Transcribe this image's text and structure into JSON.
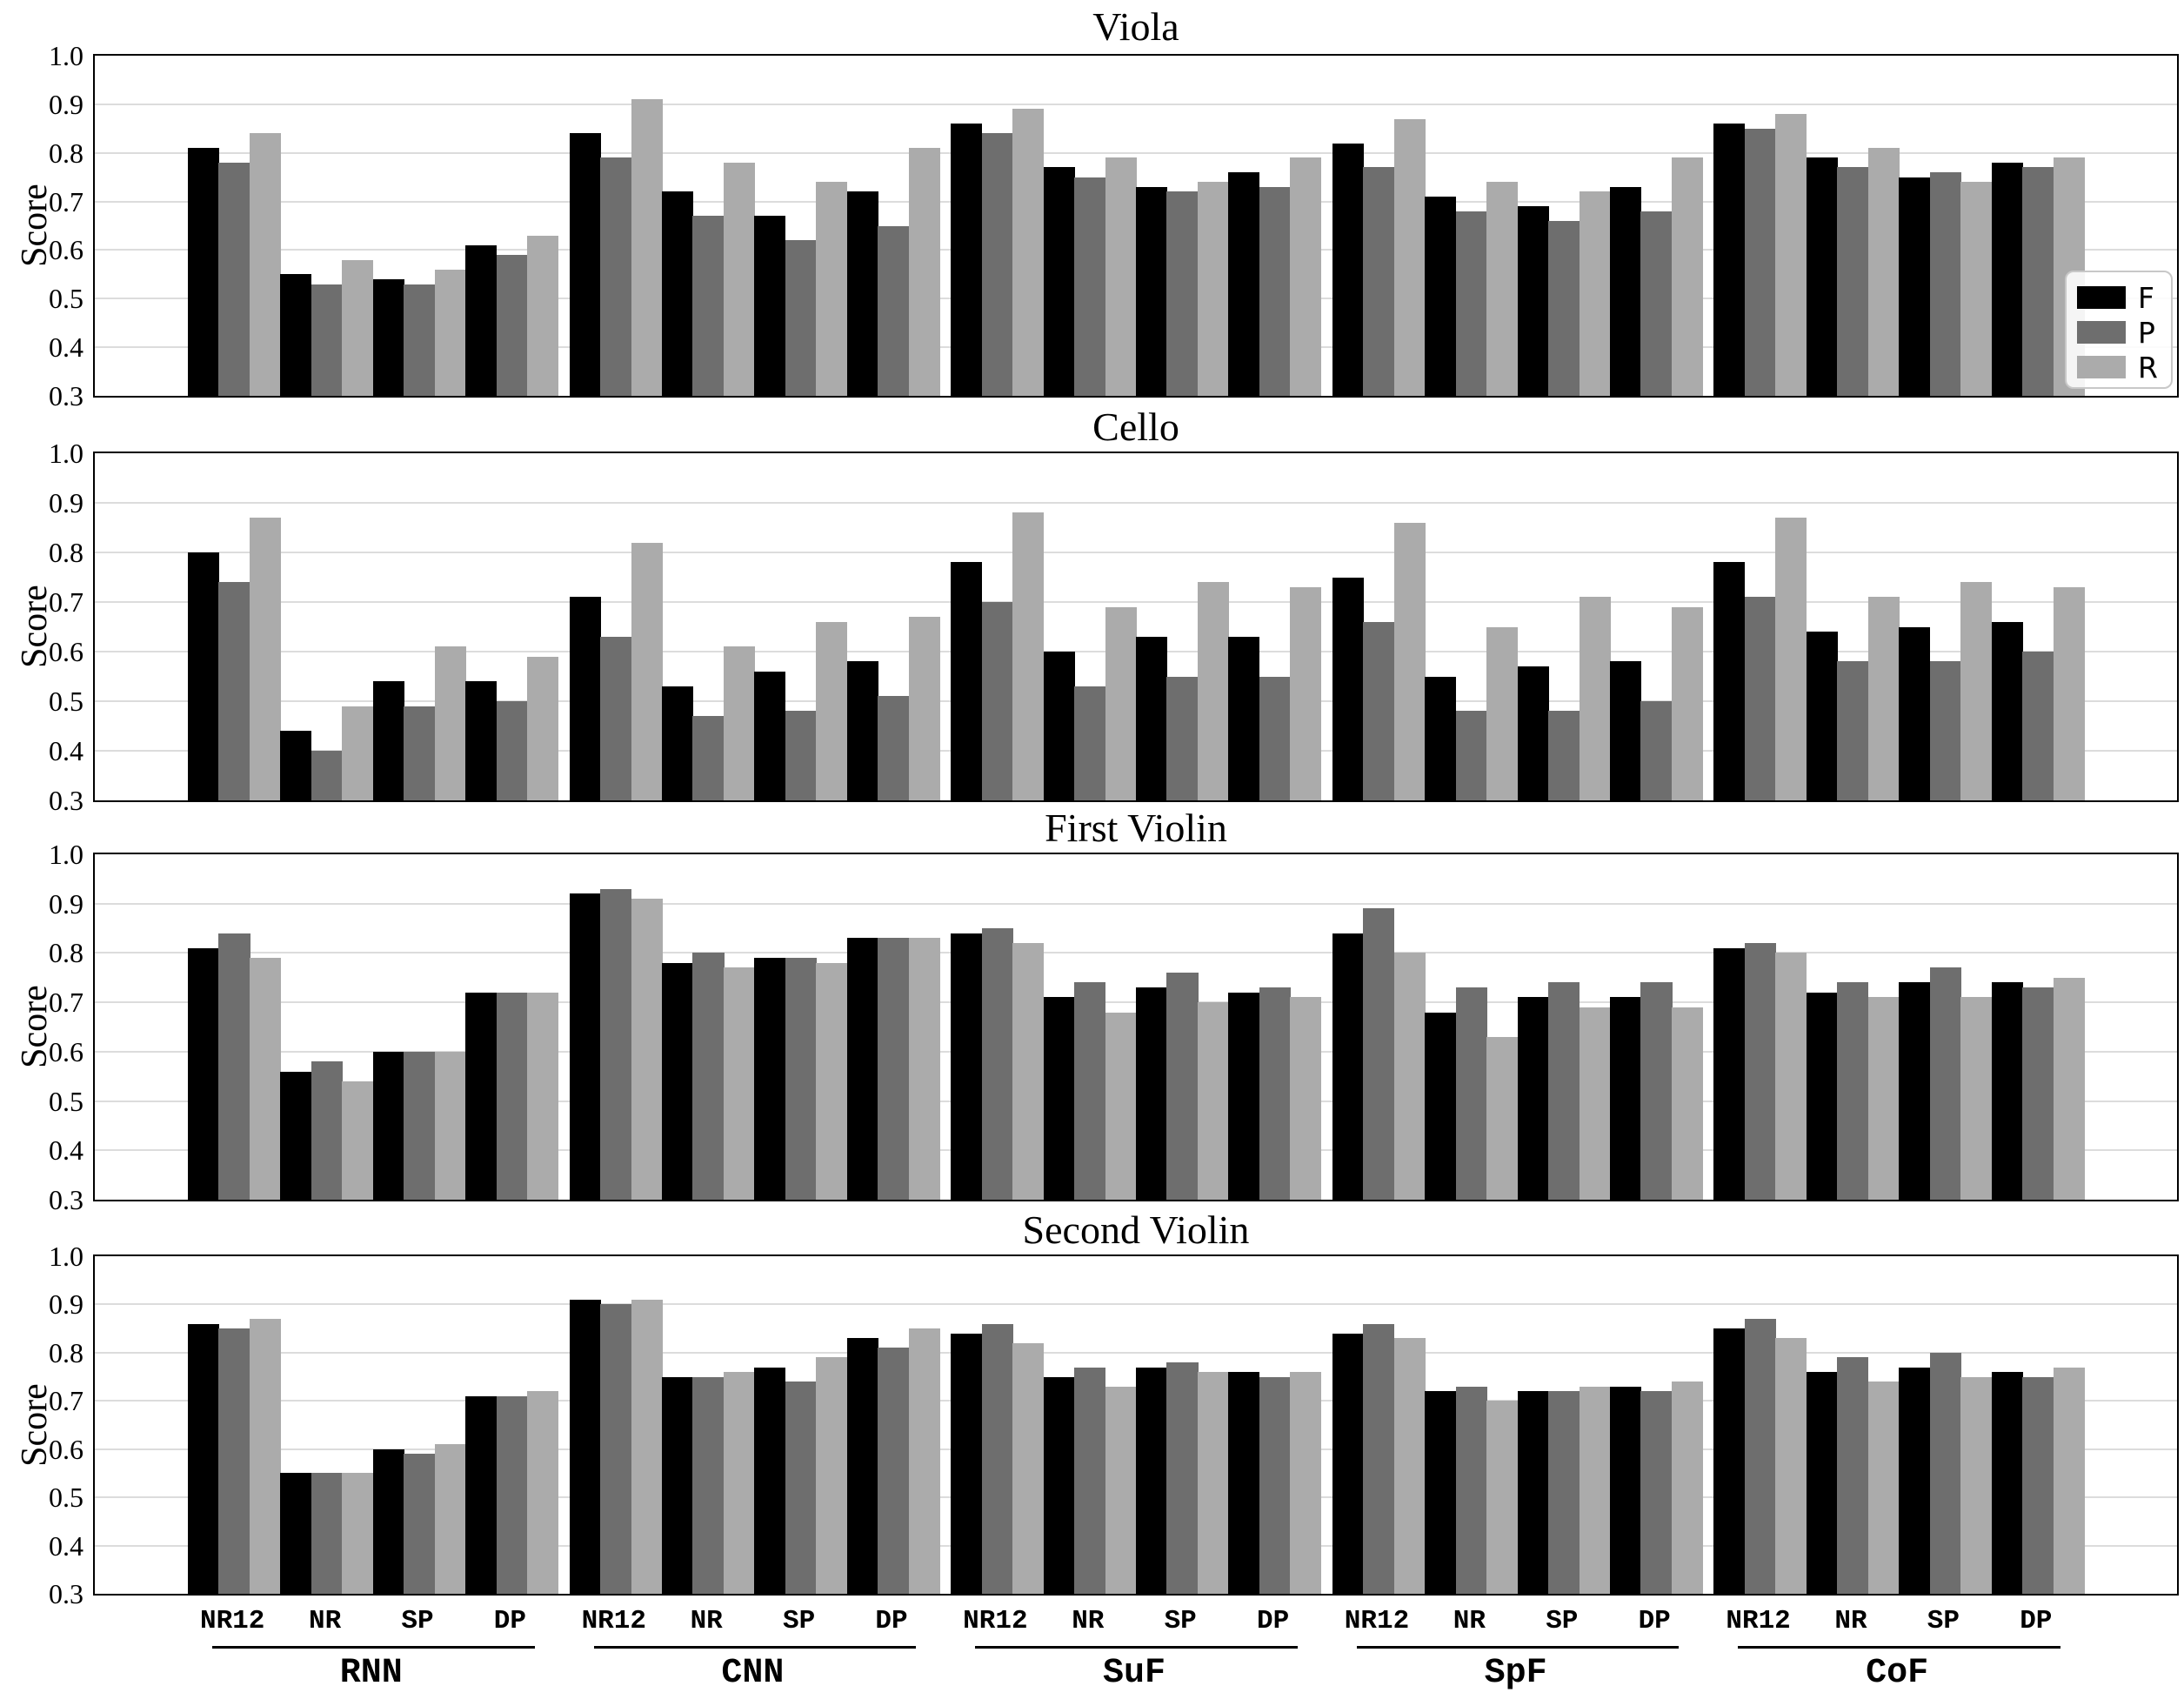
{
  "chart_data": {
    "type": "bar",
    "ylabel": "Score",
    "ylim": [
      0.3,
      1.0
    ],
    "yticks": [
      "1.0",
      "0.9",
      "0.8",
      "0.7",
      "0.6",
      "0.5",
      "0.4",
      "0.3"
    ],
    "grid": "horizontal",
    "legend_position": "inside-right-first-subplot",
    "series": [
      {
        "label": "F",
        "color": "#000000"
      },
      {
        "label": "P",
        "color": "#6e6e6e"
      },
      {
        "label": "R",
        "color": "#ababab"
      }
    ],
    "groups": [
      "RNN",
      "CNN",
      "SuF",
      "SpF",
      "CoF"
    ],
    "subgroups": [
      "NR12",
      "NR",
      "SP",
      "DP"
    ],
    "subplots": [
      {
        "title": "Viola",
        "values": [
          [
            [
              0.81,
              0.78,
              0.84
            ],
            [
              0.55,
              0.53,
              0.58
            ],
            [
              0.54,
              0.53,
              0.56
            ],
            [
              0.61,
              0.59,
              0.63
            ]
          ],
          [
            [
              0.84,
              0.79,
              0.91
            ],
            [
              0.72,
              0.67,
              0.78
            ],
            [
              0.67,
              0.62,
              0.74
            ],
            [
              0.72,
              0.65,
              0.81
            ]
          ],
          [
            [
              0.86,
              0.84,
              0.89
            ],
            [
              0.77,
              0.75,
              0.79
            ],
            [
              0.73,
              0.72,
              0.74
            ],
            [
              0.76,
              0.73,
              0.79
            ]
          ],
          [
            [
              0.82,
              0.77,
              0.87
            ],
            [
              0.71,
              0.68,
              0.74
            ],
            [
              0.69,
              0.66,
              0.72
            ],
            [
              0.73,
              0.68,
              0.79
            ]
          ],
          [
            [
              0.86,
              0.85,
              0.88
            ],
            [
              0.79,
              0.77,
              0.81
            ],
            [
              0.75,
              0.76,
              0.74
            ],
            [
              0.78,
              0.77,
              0.79
            ]
          ]
        ]
      },
      {
        "title": "Cello",
        "values": [
          [
            [
              0.8,
              0.74,
              0.87
            ],
            [
              0.44,
              0.4,
              0.49
            ],
            [
              0.54,
              0.49,
              0.61
            ],
            [
              0.54,
              0.5,
              0.59
            ]
          ],
          [
            [
              0.71,
              0.63,
              0.82
            ],
            [
              0.53,
              0.47,
              0.61
            ],
            [
              0.56,
              0.48,
              0.66
            ],
            [
              0.58,
              0.51,
              0.67
            ]
          ],
          [
            [
              0.78,
              0.7,
              0.88
            ],
            [
              0.6,
              0.53,
              0.69
            ],
            [
              0.63,
              0.55,
              0.74
            ],
            [
              0.63,
              0.55,
              0.73
            ]
          ],
          [
            [
              0.75,
              0.66,
              0.86
            ],
            [
              0.55,
              0.48,
              0.65
            ],
            [
              0.57,
              0.48,
              0.71
            ],
            [
              0.58,
              0.5,
              0.69
            ]
          ],
          [
            [
              0.78,
              0.71,
              0.87
            ],
            [
              0.64,
              0.58,
              0.71
            ],
            [
              0.65,
              0.58,
              0.74
            ],
            [
              0.66,
              0.6,
              0.73
            ]
          ]
        ]
      },
      {
        "title": "First Violin",
        "values": [
          [
            [
              0.81,
              0.84,
              0.79
            ],
            [
              0.56,
              0.58,
              0.54
            ],
            [
              0.6,
              0.6,
              0.6
            ],
            [
              0.72,
              0.72,
              0.72
            ]
          ],
          [
            [
              0.92,
              0.93,
              0.91
            ],
            [
              0.78,
              0.8,
              0.77
            ],
            [
              0.79,
              0.79,
              0.78
            ],
            [
              0.83,
              0.83,
              0.83
            ]
          ],
          [
            [
              0.84,
              0.85,
              0.82
            ],
            [
              0.71,
              0.74,
              0.68
            ],
            [
              0.73,
              0.76,
              0.7
            ],
            [
              0.72,
              0.73,
              0.71
            ]
          ],
          [
            [
              0.84,
              0.89,
              0.8
            ],
            [
              0.68,
              0.73,
              0.63
            ],
            [
              0.71,
              0.74,
              0.69
            ],
            [
              0.71,
              0.74,
              0.69
            ]
          ],
          [
            [
              0.81,
              0.82,
              0.8
            ],
            [
              0.72,
              0.74,
              0.71
            ],
            [
              0.74,
              0.77,
              0.71
            ],
            [
              0.74,
              0.73,
              0.75
            ]
          ]
        ]
      },
      {
        "title": "Second Violin",
        "values": [
          [
            [
              0.86,
              0.85,
              0.87
            ],
            [
              0.55,
              0.55,
              0.55
            ],
            [
              0.6,
              0.59,
              0.61
            ],
            [
              0.71,
              0.71,
              0.72
            ]
          ],
          [
            [
              0.91,
              0.9,
              0.91
            ],
            [
              0.75,
              0.75,
              0.76
            ],
            [
              0.77,
              0.74,
              0.79
            ],
            [
              0.83,
              0.81,
              0.85
            ]
          ],
          [
            [
              0.84,
              0.86,
              0.82
            ],
            [
              0.75,
              0.77,
              0.73
            ],
            [
              0.77,
              0.78,
              0.76
            ],
            [
              0.76,
              0.75,
              0.76
            ]
          ],
          [
            [
              0.84,
              0.86,
              0.83
            ],
            [
              0.72,
              0.73,
              0.7
            ],
            [
              0.72,
              0.72,
              0.73
            ],
            [
              0.73,
              0.72,
              0.74
            ]
          ],
          [
            [
              0.85,
              0.87,
              0.83
            ],
            [
              0.76,
              0.79,
              0.74
            ],
            [
              0.77,
              0.8,
              0.75
            ],
            [
              0.76,
              0.75,
              0.77
            ]
          ]
        ]
      }
    ]
  }
}
